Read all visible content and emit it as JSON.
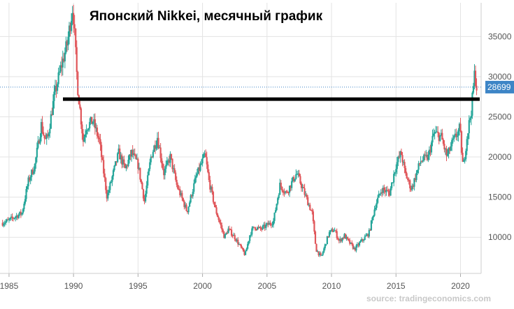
{
  "chart_data": {
    "type": "candlestick",
    "title": "Японский Nikkei, месячный график",
    "source": "source: tradingeconomics.com",
    "xlim": [
      1984.3,
      2021.6
    ],
    "ylim": [
      5500,
      39200
    ],
    "grid": true,
    "x_ticks": [
      {
        "value": 1985,
        "label": "1985"
      },
      {
        "value": 1990,
        "label": "1990"
      },
      {
        "value": 1995,
        "label": "1995"
      },
      {
        "value": 2000,
        "label": "2000"
      },
      {
        "value": 2005,
        "label": "2005"
      },
      {
        "value": 2010,
        "label": "2010"
      },
      {
        "value": 2015,
        "label": "2015"
      },
      {
        "value": 2020,
        "label": "2020"
      }
    ],
    "y_ticks": [
      {
        "value": 10000,
        "label": "10000"
      },
      {
        "value": 15000,
        "label": "15000"
      },
      {
        "value": 20000,
        "label": "20000"
      },
      {
        "value": 25000,
        "label": "25000"
      },
      {
        "value": 30000,
        "label": "30000"
      },
      {
        "value": 35000,
        "label": "35000"
      }
    ],
    "series": [
      {
        "values": [
          [
            1984.5,
            11800
          ],
          [
            1985.0,
            12100
          ],
          [
            1985.5,
            12600
          ],
          [
            1986.0,
            13000
          ],
          [
            1986.5,
            17000
          ],
          [
            1987.0,
            19000
          ],
          [
            1987.5,
            24000
          ],
          [
            1987.8,
            22000
          ],
          [
            1988.0,
            22500
          ],
          [
            1988.5,
            27500
          ],
          [
            1989.0,
            31000
          ],
          [
            1989.5,
            34000
          ],
          [
            1989.95,
            38900
          ],
          [
            1990.3,
            29000
          ],
          [
            1990.75,
            22000
          ],
          [
            1991.0,
            23800
          ],
          [
            1991.5,
            24500
          ],
          [
            1992.0,
            22000
          ],
          [
            1992.6,
            15000
          ],
          [
            1993.0,
            17500
          ],
          [
            1993.5,
            20500
          ],
          [
            1994.0,
            18500
          ],
          [
            1994.5,
            20500
          ],
          [
            1995.0,
            19000
          ],
          [
            1995.5,
            14500
          ],
          [
            1996.0,
            20000
          ],
          [
            1996.5,
            22500
          ],
          [
            1997.0,
            18000
          ],
          [
            1997.5,
            20000
          ],
          [
            1998.0,
            16500
          ],
          [
            1998.8,
            13200
          ],
          [
            1999.5,
            17500
          ],
          [
            2000.2,
            20300
          ],
          [
            2000.5,
            17000
          ],
          [
            2001.0,
            13500
          ],
          [
            2001.7,
            10000
          ],
          [
            2002.0,
            11000
          ],
          [
            2002.5,
            10000
          ],
          [
            2003.3,
            7800
          ],
          [
            2003.7,
            10500
          ],
          [
            2004.0,
            11300
          ],
          [
            2004.5,
            11000
          ],
          [
            2005.0,
            11500
          ],
          [
            2005.5,
            12000
          ],
          [
            2006.0,
            16500
          ],
          [
            2006.5,
            15500
          ],
          [
            2007.3,
            18000
          ],
          [
            2007.9,
            15500
          ],
          [
            2008.5,
            13000
          ],
          [
            2008.8,
            8500
          ],
          [
            2009.2,
            7500
          ],
          [
            2009.8,
            10500
          ],
          [
            2010.2,
            11000
          ],
          [
            2010.6,
            9500
          ],
          [
            2011.0,
            10200
          ],
          [
            2011.3,
            9500
          ],
          [
            2011.8,
            8500
          ],
          [
            2012.3,
            9500
          ],
          [
            2012.9,
            10500
          ],
          [
            2013.4,
            14000
          ],
          [
            2013.9,
            16000
          ],
          [
            2014.5,
            15500
          ],
          [
            2015.0,
            19000
          ],
          [
            2015.4,
            20500
          ],
          [
            2015.7,
            18000
          ],
          [
            2016.2,
            16000
          ],
          [
            2016.9,
            19500
          ],
          [
            2017.5,
            20000
          ],
          [
            2017.95,
            23000
          ],
          [
            2018.5,
            22500
          ],
          [
            2018.95,
            20000
          ],
          [
            2019.3,
            21500
          ],
          [
            2019.95,
            23600
          ],
          [
            2020.2,
            18500
          ],
          [
            2020.5,
            22500
          ],
          [
            2020.85,
            26000
          ],
          [
            2021.1,
            30500
          ],
          [
            2021.25,
            28699
          ]
        ]
      }
    ],
    "last_value": 28699,
    "last_value_label": "28699",
    "resistance_level": 27200,
    "colors": {
      "up": "#26a69a",
      "down": "#e0565a",
      "resistance_line": "#000000",
      "price_tag": "#3d85c6",
      "grid": "#e3e3e3"
    }
  }
}
